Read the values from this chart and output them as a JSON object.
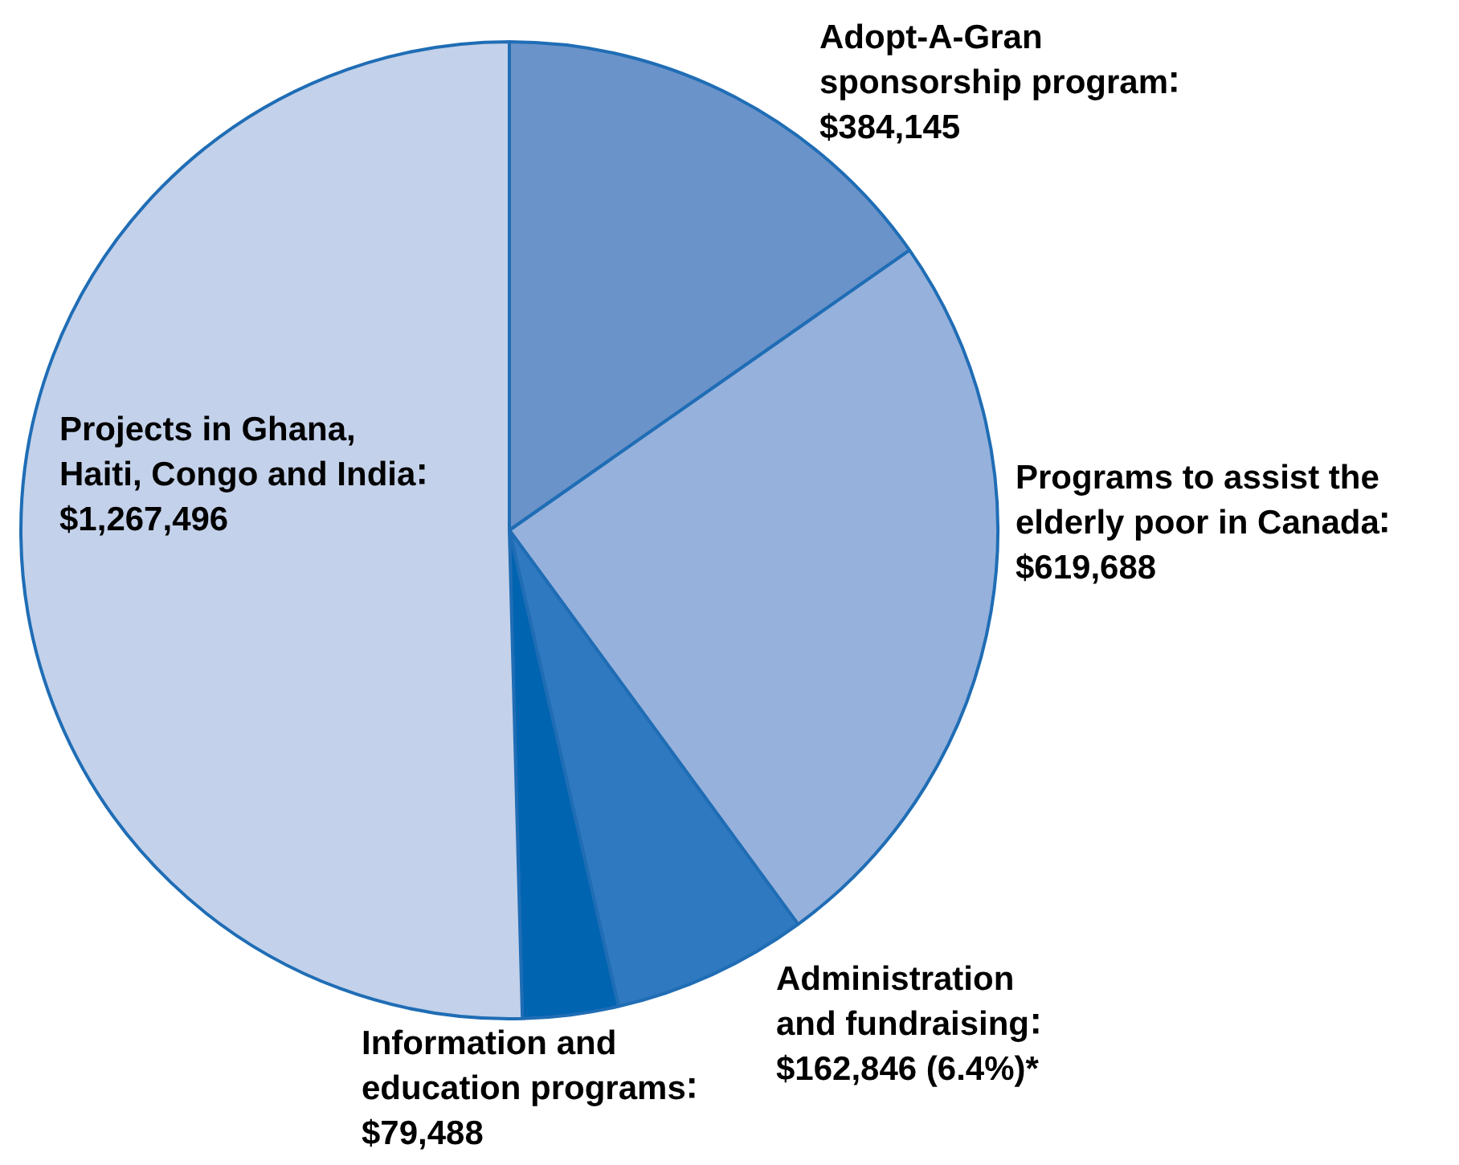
{
  "chart_data": {
    "type": "pie",
    "categories": [
      "Adopt-A-Gran sponsorship program",
      "Programs to assist the elderly poor in Canada",
      "Administration and fundraising",
      "Information and education programs",
      "Projects in Ghana, Haiti, Congo and India"
    ],
    "values": [
      384145,
      619688,
      162846,
      79488,
      1267496
    ],
    "colors": [
      "#6a93c9",
      "#95b1dc",
      "#2f79c0",
      "#0064b0",
      "#c3d1ea"
    ],
    "value_labels": [
      "$384,145",
      "$619,688",
      "$162,846 (6.4%)*",
      "$79,488",
      "$1,267,496"
    ]
  }
}
